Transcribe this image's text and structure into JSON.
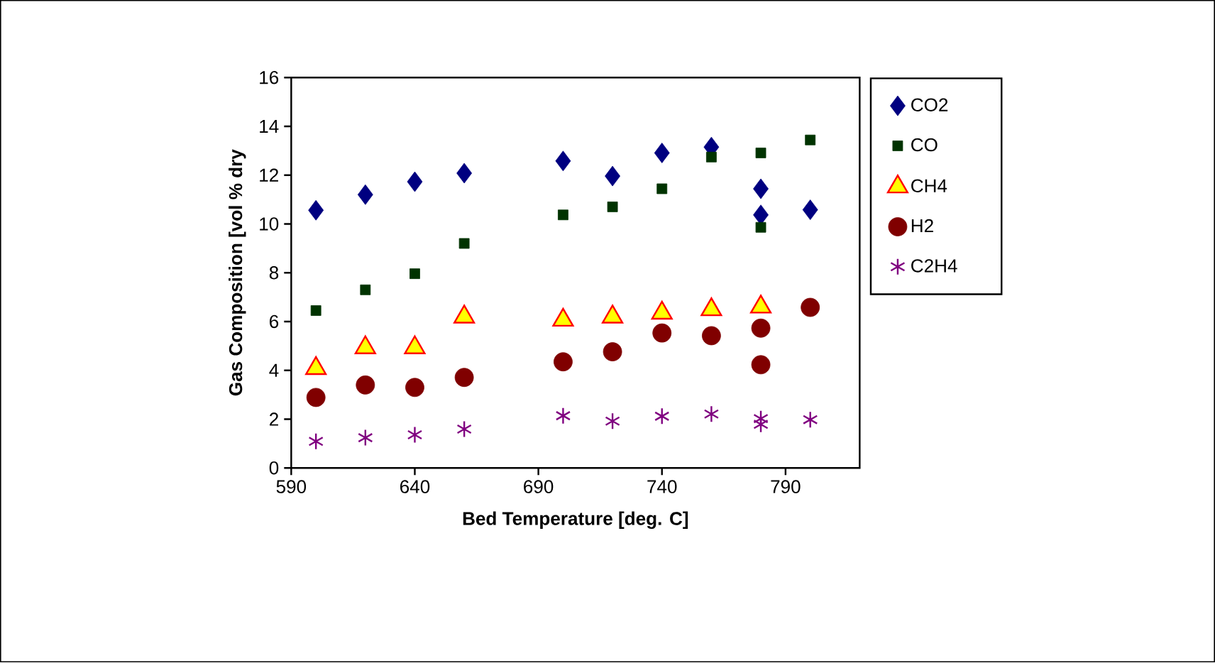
{
  "chart_data": {
    "type": "scatter",
    "xlabel": "Bed Temperature [deg. C]",
    "ylabel": "Gas Composition [vol % dry",
    "xlim": [
      590,
      820
    ],
    "xticks": [
      590,
      640,
      690,
      740,
      790
    ],
    "ylim": [
      0,
      16
    ],
    "yticks": [
      0,
      2,
      4,
      6,
      8,
      10,
      12,
      14,
      16
    ],
    "legend": "right",
    "grid": false,
    "series": [
      {
        "name": "CO2",
        "color": "#000080",
        "marker": "diamond",
        "x": [
          600,
          620,
          640,
          660,
          700,
          720,
          740,
          760,
          780,
          780,
          800
        ],
        "values": [
          10.56,
          11.2,
          11.73,
          12.08,
          12.58,
          11.96,
          12.91,
          13.15,
          11.44,
          10.37,
          10.58
        ]
      },
      {
        "name": "CO",
        "color": "#003300",
        "marker": "square",
        "x": [
          600,
          620,
          640,
          660,
          700,
          720,
          740,
          760,
          780,
          780,
          800
        ],
        "values": [
          6.45,
          7.3,
          7.96,
          9.2,
          10.37,
          10.7,
          11.44,
          12.74,
          12.91,
          9.86,
          13.44
        ]
      },
      {
        "name": "CH4",
        "color": "#ffff00",
        "marker": "triangle",
        "x": [
          600,
          620,
          640,
          660,
          700,
          720,
          740,
          760,
          780
        ],
        "values": [
          4.08,
          4.93,
          4.93,
          6.19,
          6.06,
          6.19,
          6.35,
          6.49,
          6.6
        ]
      },
      {
        "name": "H2",
        "color": "#800000",
        "marker": "circle",
        "x": [
          600,
          620,
          640,
          660,
          700,
          720,
          740,
          760,
          780,
          780,
          800
        ],
        "values": [
          2.89,
          3.4,
          3.3,
          3.71,
          4.35,
          4.76,
          5.53,
          5.42,
          5.73,
          4.23,
          6.58
        ]
      },
      {
        "name": "C2H4",
        "color": "#800080",
        "marker": "cross",
        "x": [
          600,
          620,
          640,
          660,
          700,
          720,
          740,
          760,
          780,
          780,
          800
        ],
        "values": [
          1.09,
          1.24,
          1.36,
          1.59,
          2.14,
          1.92,
          2.12,
          2.21,
          2.02,
          1.79,
          1.98
        ]
      }
    ]
  }
}
